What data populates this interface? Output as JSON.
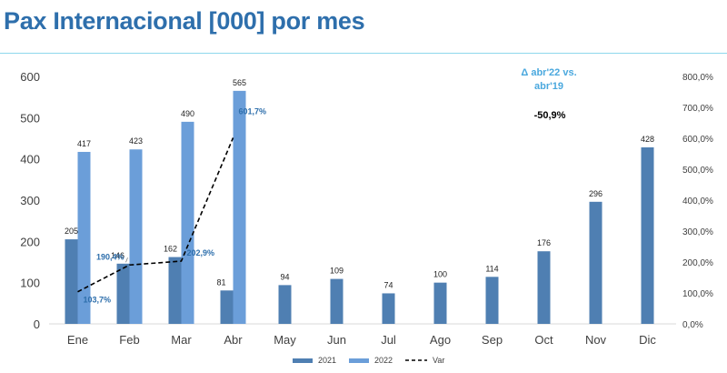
{
  "title": "Pax Internacional [000] por mes",
  "chart_data": {
    "type": "bar",
    "categories": [
      "Ene",
      "Feb",
      "Mar",
      "Abr",
      "May",
      "Jun",
      "Jul",
      "Ago",
      "Sep",
      "Oct",
      "Nov",
      "Dic"
    ],
    "series": [
      {
        "name": "2021",
        "values": [
          205,
          146,
          162,
          81,
          94,
          109,
          74,
          100,
          114,
          176,
          296,
          428
        ],
        "color": "#4F7FB2"
      },
      {
        "name": "2022",
        "values": [
          417,
          423,
          490,
          565,
          null,
          null,
          null,
          null,
          null,
          null,
          null,
          null
        ],
        "color": "#6B9ED9"
      },
      {
        "name": "Var",
        "type": "line",
        "axis": "right",
        "values": [
          103.7,
          190.4,
          202.9,
          601.7,
          null,
          null,
          null,
          null,
          null,
          null,
          null,
          null
        ],
        "color": "#000000",
        "dash": true
      }
    ],
    "y_left": {
      "ylim": [
        0,
        600
      ],
      "ticks": [
        "0",
        "100",
        "200",
        "300",
        "400",
        "500",
        "600"
      ]
    },
    "y_right": {
      "ylim": [
        0,
        800
      ],
      "ticks": [
        "0,0%",
        "100,0%",
        "200,0%",
        "300,0%",
        "400,0%",
        "500,0%",
        "600,0%",
        "700,0%",
        "800,0%"
      ]
    },
    "bar_labels_2021": [
      "205",
      "146",
      "162",
      "81",
      "94",
      "109",
      "74",
      "100",
      "114",
      "176",
      "296",
      "428"
    ],
    "bar_labels_2022": [
      "417",
      "423",
      "490",
      "565"
    ],
    "var_labels": [
      "103,7%",
      "190,4%",
      "202,9%",
      "601,7%"
    ],
    "var_label_color": "#2E6FAC",
    "grid": false,
    "legend_position": "bottom-center",
    "annotations": [
      {
        "text": "Δ abr'22 vs. abr'19",
        "color": "#4AA8DE"
      },
      {
        "text": "-50,9%",
        "color": "#000000"
      }
    ]
  }
}
